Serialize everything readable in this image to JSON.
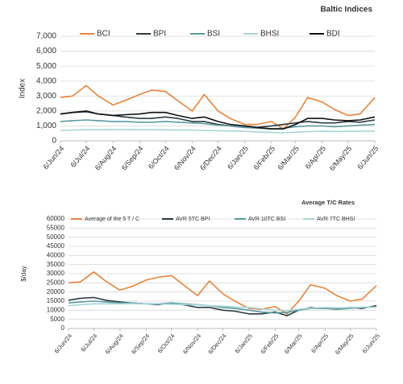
{
  "chart_data": [
    {
      "type": "line",
      "title": "Baltic Indices",
      "y_label": "Index",
      "x": [
        "2024-06-06",
        "2024-06-20",
        "2024-07-06",
        "2024-07-20",
        "2024-08-06",
        "2024-08-20",
        "2024-09-06",
        "2024-09-20",
        "2024-10-06",
        "2024-10-20",
        "2024-11-06",
        "2024-11-20",
        "2024-12-06",
        "2024-12-20",
        "2025-01-06",
        "2025-01-20",
        "2025-02-06",
        "2025-02-20",
        "2025-03-06",
        "2025-03-20",
        "2025-04-06",
        "2025-04-20",
        "2025-05-06",
        "2025-05-20",
        "2025-06-06"
      ],
      "xlim": [
        "2024-06-06",
        "2025-06-06"
      ],
      "xticks": [
        {
          "value": "2024-06-06",
          "label": "6/Jun/24"
        },
        {
          "value": "2024-07-06",
          "label": "6/Jul/24"
        },
        {
          "value": "2024-08-06",
          "label": "6/Aug/24"
        },
        {
          "value": "2024-09-06",
          "label": "6/Sep/24"
        },
        {
          "value": "2024-10-06",
          "label": "6/Oct/24"
        },
        {
          "value": "2024-11-06",
          "label": "6/Nov/24"
        },
        {
          "value": "2024-12-06",
          "label": "6/Dec/24"
        },
        {
          "value": "2025-01-06",
          "label": "6/Jan/25"
        },
        {
          "value": "2025-02-06",
          "label": "6/Feb/25"
        },
        {
          "value": "2025-03-06",
          "label": "6/Mar/25"
        },
        {
          "value": "2025-04-06",
          "label": "6/Apr/25"
        },
        {
          "value": "2025-05-06",
          "label": "6/May/25"
        },
        {
          "value": "2025-06-06",
          "label": "6/Jun/25"
        }
      ],
      "ylim": [
        0,
        7000
      ],
      "yticks": [
        0,
        {
          "value": 1000,
          "label": "1,000"
        },
        {
          "value": 2000,
          "label": "2,000"
        },
        {
          "value": 3000,
          "label": "3,000"
        },
        {
          "value": 4000,
          "label": "4,000"
        },
        {
          "value": 5000,
          "label": "5,000"
        },
        {
          "value": 6000,
          "label": "6,000"
        },
        {
          "value": 7000,
          "label": "7,000"
        }
      ],
      "grid": true,
      "series": [
        {
          "name": "BCI",
          "color": "#e8833a",
          "values": [
            2900,
            3000,
            3700,
            3000,
            2400,
            2700,
            3100,
            3400,
            3300,
            2700,
            2000,
            3100,
            2000,
            1500,
            1100,
            1100,
            1300,
            800,
            1600,
            2900,
            2600,
            2100,
            1700,
            1800,
            2900
          ]
        },
        {
          "name": "BPI",
          "color": "#2b3a42",
          "values": [
            1800,
            1900,
            1950,
            1800,
            1700,
            1600,
            1500,
            1500,
            1600,
            1500,
            1300,
            1300,
            1100,
            1000,
            900,
            900,
            1000,
            1100,
            1200,
            1300,
            1200,
            1200,
            1300,
            1250,
            1400
          ]
        },
        {
          "name": "BSI",
          "color": "#5b9aa0",
          "values": [
            1300,
            1350,
            1400,
            1350,
            1300,
            1300,
            1250,
            1250,
            1300,
            1250,
            1200,
            1150,
            1050,
            1000,
            900,
            850,
            800,
            850,
            950,
            1000,
            1000,
            950,
            1000,
            1050,
            1100
          ]
        },
        {
          "name": "BHSI",
          "color": "#a8d5d8",
          "values": [
            700,
            720,
            750,
            750,
            760,
            760,
            750,
            750,
            740,
            730,
            720,
            700,
            680,
            660,
            640,
            600,
            560,
            540,
            580,
            620,
            640,
            630,
            640,
            650,
            650
          ]
        },
        {
          "name": "BDI",
          "color": "#111111",
          "values": [
            1800,
            1900,
            2000,
            1800,
            1700,
            1750,
            1800,
            1900,
            1900,
            1700,
            1500,
            1600,
            1300,
            1100,
            1000,
            900,
            800,
            800,
            1100,
            1500,
            1500,
            1400,
            1350,
            1400,
            1600
          ]
        }
      ]
    },
    {
      "type": "line",
      "title": "Average T/C Rates",
      "y_label": "$/day",
      "x": [
        "2024-06-06",
        "2024-06-20",
        "2024-07-06",
        "2024-07-20",
        "2024-08-06",
        "2024-08-20",
        "2024-09-06",
        "2024-09-20",
        "2024-10-06",
        "2024-10-20",
        "2024-11-06",
        "2024-11-20",
        "2024-12-06",
        "2024-12-20",
        "2025-01-06",
        "2025-01-20",
        "2025-02-06",
        "2025-02-20",
        "2025-03-06",
        "2025-03-20",
        "2025-04-06",
        "2025-04-20",
        "2025-05-06",
        "2025-05-20",
        "2025-06-06"
      ],
      "xlim": [
        "2024-06-06",
        "2025-06-06"
      ],
      "xticks": [
        {
          "value": "2024-06-06",
          "label": "6/Jun/24"
        },
        {
          "value": "2024-07-06",
          "label": "6/Jul/24"
        },
        {
          "value": "2024-08-06",
          "label": "6/Aug/24"
        },
        {
          "value": "2024-09-06",
          "label": "6/Sep/24"
        },
        {
          "value": "2024-10-06",
          "label": "6/Oct/24"
        },
        {
          "value": "2024-11-06",
          "label": "6/Nov/24"
        },
        {
          "value": "2024-12-06",
          "label": "6/Dec/24"
        },
        {
          "value": "2025-01-06",
          "label": "6/Jan/25"
        },
        {
          "value": "2025-02-06",
          "label": "6/Feb/25"
        },
        {
          "value": "2025-03-06",
          "label": "6/Mar/25"
        },
        {
          "value": "2025-04-06",
          "label": "6/Apr/25"
        },
        {
          "value": "2025-05-06",
          "label": "6/May/25"
        },
        {
          "value": "2025-06-06",
          "label": "6/Jun/25"
        }
      ],
      "ylim": [
        0,
        60000
      ],
      "yticks": [
        0,
        5000,
        10000,
        15000,
        20000,
        25000,
        30000,
        35000,
        40000,
        45000,
        50000,
        55000,
        60000
      ],
      "grid": true,
      "series": [
        {
          "name": "Average of the 5 T / C",
          "color": "#e8833a",
          "values": [
            25000,
            25500,
            31000,
            26000,
            21000,
            23000,
            26500,
            28000,
            29000,
            24000,
            18000,
            26000,
            19000,
            15000,
            11000,
            10500,
            12000,
            8000,
            15000,
            24000,
            22000,
            18000,
            15000,
            16000,
            23500
          ]
        },
        {
          "name": "AVR 5TC BPI",
          "color": "#2b3a42",
          "values": [
            15500,
            16500,
            17000,
            15500,
            14500,
            14000,
            13500,
            13000,
            13800,
            13000,
            11500,
            11500,
            10000,
            9500,
            8000,
            8000,
            9000,
            7000,
            10000,
            11500,
            11000,
            11000,
            11500,
            11000,
            12500
          ]
        },
        {
          "name": "AVR 10TC BSI",
          "color": "#5b9aa0",
          "values": [
            14000,
            14500,
            15000,
            14500,
            14000,
            14000,
            13500,
            13500,
            14000,
            13500,
            13000,
            12500,
            11500,
            11000,
            10000,
            9000,
            8500,
            8800,
            10000,
            11000,
            11000,
            10500,
            11000,
            11500,
            11800
          ]
        },
        {
          "name": "AVR 7TC BHSI",
          "color": "#a8d5d8",
          "values": [
            12500,
            13000,
            13500,
            13500,
            13500,
            13600,
            13400,
            13400,
            13300,
            13100,
            12900,
            12500,
            12200,
            11800,
            11500,
            10800,
            10000,
            9800,
            10500,
            11200,
            11500,
            11300,
            11500,
            11600,
            11700
          ]
        }
      ]
    }
  ]
}
